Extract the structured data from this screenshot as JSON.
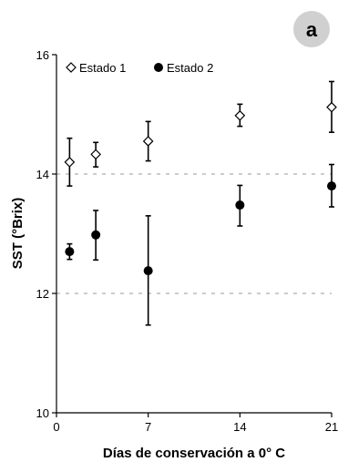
{
  "chart_data": {
    "type": "scatter",
    "panel_label": "a",
    "xlabel": "Días de conservación a 0° C",
    "ylabel": "SST (°Brix)",
    "xlim": [
      0,
      21
    ],
    "ylim": [
      10,
      16
    ],
    "x_ticks": [
      0,
      7,
      14,
      21
    ],
    "x_tick_labels": [
      "0",
      "7",
      "14",
      "21"
    ],
    "y_ticks": [
      10,
      12,
      14,
      16
    ],
    "y_tick_labels": [
      "10",
      "12",
      "14",
      "16"
    ],
    "gridlines_y": [
      12,
      14
    ],
    "legend_position": "top-left",
    "series": [
      {
        "name": "Estado 1",
        "marker": "open-diamond",
        "x": [
          1,
          3,
          7,
          14,
          21
        ],
        "y": [
          14.2,
          14.33,
          14.55,
          14.98,
          15.12
        ],
        "err_low": [
          13.8,
          14.12,
          14.22,
          14.8,
          14.7
        ],
        "err_high": [
          14.6,
          14.53,
          14.88,
          15.17,
          15.55
        ]
      },
      {
        "name": "Estado 2",
        "marker": "filled-circle",
        "x": [
          1,
          3,
          7,
          14,
          21
        ],
        "y": [
          12.7,
          12.98,
          12.38,
          13.48,
          13.8
        ],
        "err_low": [
          12.57,
          12.56,
          11.47,
          13.13,
          13.45
        ],
        "err_high": [
          12.83,
          13.39,
          13.3,
          13.81,
          14.16
        ]
      }
    ],
    "colors": {
      "marker": "#000000",
      "gridline": "#999999",
      "background": "#ffffff"
    }
  }
}
